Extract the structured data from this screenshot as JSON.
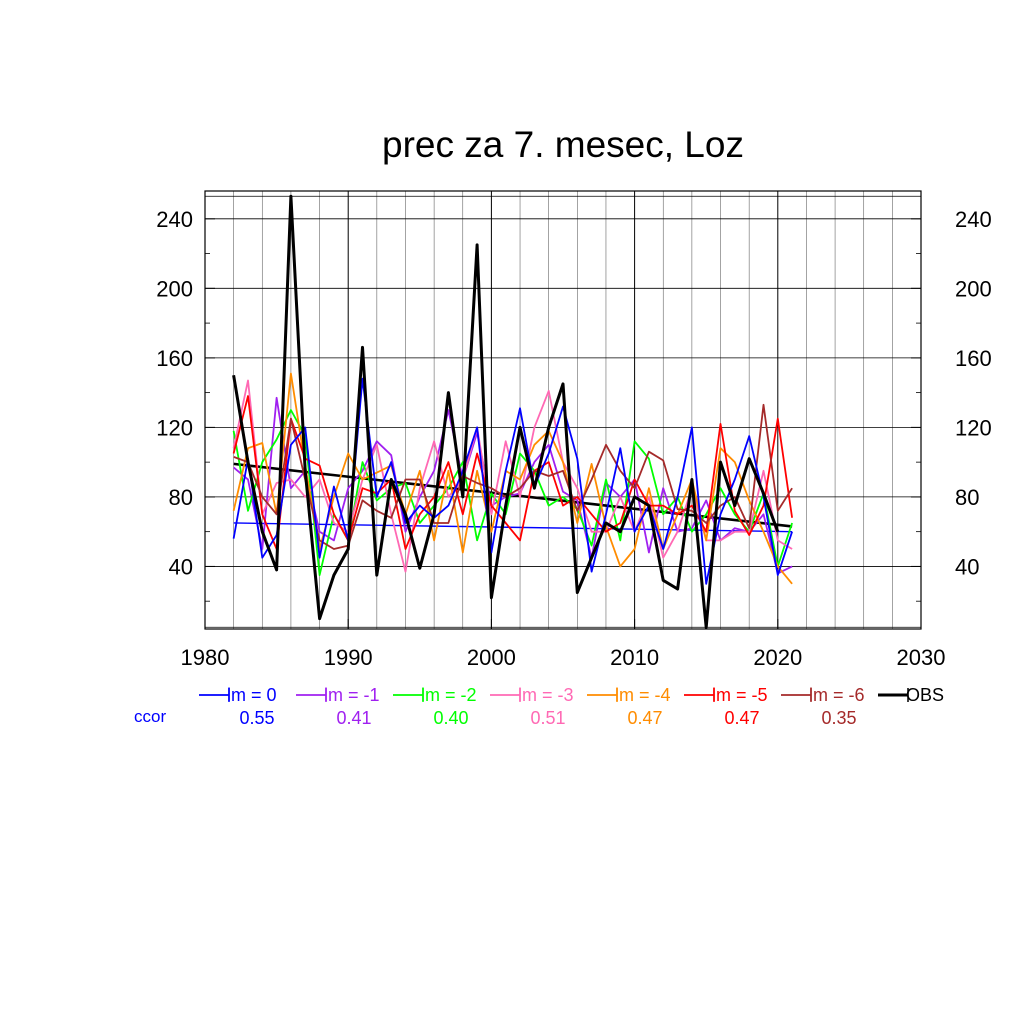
{
  "chart_data": {
    "type": "line",
    "title": "prec za 7. mesec, Loz",
    "xlabel": "",
    "ylabel": "",
    "xlim": [
      1980,
      2030
    ],
    "ylim": [
      4,
      256
    ],
    "x_ticks": [
      1980,
      1990,
      2000,
      2010,
      2020,
      2030
    ],
    "y_ticks": [
      40,
      80,
      120,
      160,
      200,
      240
    ],
    "grid": true,
    "legend_position": "bottom",
    "ccor_label": "ccor",
    "x": [
      1982,
      1983,
      1984,
      1985,
      1986,
      1987,
      1988,
      1989,
      1990,
      1991,
      1992,
      1993,
      1994,
      1995,
      1996,
      1997,
      1998,
      1999,
      2000,
      2001,
      2002,
      2003,
      2004,
      2005,
      2006,
      2007,
      2008,
      2009,
      2010,
      2011,
      2012,
      2013,
      2014,
      2015,
      2016,
      2017,
      2018,
      2019,
      2020,
      2021
    ],
    "series": [
      {
        "name": "lm = 0",
        "color": "#0000ff",
        "width": 1.8,
        "ccor": "0.55",
        "trend": [
          65,
          60
        ],
        "values": [
          56,
          102,
          45,
          58,
          110,
          120,
          45,
          86,
          55,
          148,
          80,
          100,
          65,
          75,
          68,
          75,
          95,
          120,
          48,
          95,
          131,
          86,
          105,
          132,
          102,
          37,
          70,
          108,
          60,
          75,
          50,
          80,
          120,
          30,
          70,
          90,
          115,
          80,
          35,
          60
        ]
      },
      {
        "name": "lm = -1",
        "color": "#a020f0",
        "width": 1.8,
        "ccor": "0.41",
        "values": [
          97,
          90,
          50,
          137,
          85,
          95,
          60,
          55,
          85,
          95,
          112,
          104,
          60,
          80,
          95,
          130,
          90,
          117,
          75,
          80,
          82,
          100,
          110,
          83,
          78,
          45,
          88,
          80,
          90,
          48,
          85,
          60,
          62,
          78,
          55,
          62,
          60,
          70,
          36,
          40
        ]
      },
      {
        "name": "lm = -2",
        "color": "#00ff00",
        "width": 1.8,
        "ccor": "0.40",
        "values": [
          118,
          72,
          100,
          113,
          130,
          115,
          35,
          70,
          55,
          100,
          78,
          85,
          88,
          65,
          75,
          85,
          100,
          55,
          82,
          70,
          105,
          95,
          75,
          80,
          73,
          52,
          90,
          55,
          112,
          102,
          70,
          80,
          60,
          70,
          85,
          70,
          60,
          82,
          40,
          65
        ]
      },
      {
        "name": "lm = -3",
        "color": "#ff69b4",
        "width": 1.8,
        "ccor": "0.51",
        "values": [
          108,
          147,
          70,
          88,
          90,
          80,
          90,
          65,
          60,
          90,
          110,
          70,
          37,
          85,
          112,
          80,
          90,
          120,
          70,
          112,
          80,
          120,
          141,
          100,
          85,
          60,
          60,
          80,
          60,
          80,
          45,
          60,
          85,
          55,
          55,
          60,
          60,
          95,
          55,
          50
        ]
      },
      {
        "name": "lm = -4",
        "color": "#ff8c00",
        "width": 1.8,
        "ccor": "0.47",
        "values": [
          72,
          108,
          111,
          70,
          151,
          98,
          50,
          80,
          105,
          90,
          94,
          98,
          70,
          95,
          55,
          95,
          48,
          95,
          60,
          95,
          90,
          110,
          118,
          100,
          65,
          99,
          63,
          40,
          50,
          85,
          50,
          70,
          90,
          55,
          108,
          100,
          78,
          60,
          40,
          30
        ]
      },
      {
        "name": "lm = -5",
        "color": "#ff0000",
        "width": 1.8,
        "ccor": "0.47",
        "values": [
          105,
          138,
          70,
          50,
          125,
          102,
          98,
          70,
          55,
          85,
          82,
          90,
          50,
          70,
          80,
          100,
          70,
          105,
          75,
          65,
          55,
          95,
          100,
          75,
          80,
          70,
          60,
          65,
          90,
          75,
          75,
          70,
          75,
          60,
          122,
          72,
          58,
          75,
          125,
          68
        ]
      },
      {
        "name": "lm = -6",
        "color": "#a52a2a",
        "width": 1.8,
        "ccor": "0.35",
        "values": [
          103,
          100,
          80,
          70,
          125,
          90,
          55,
          50,
          52,
          78,
          72,
          68,
          90,
          90,
          65,
          65,
          92,
          88,
          85,
          80,
          85,
          95,
          92,
          95,
          72,
          90,
          110,
          95,
          85,
          106,
          101,
          73,
          72,
          65,
          75,
          80,
          62,
          133,
          72,
          85
        ]
      },
      {
        "name": "OBS",
        "color": "#000000",
        "width": 3,
        "ccor": "",
        "trend": [
          99,
          63
        ],
        "values": [
          150,
          100,
          60,
          38,
          253,
          95,
          10,
          35,
          50,
          166,
          35,
          90,
          70,
          39,
          70,
          140,
          80,
          225,
          22,
          75,
          120,
          85,
          120,
          145,
          25,
          45,
          65,
          60,
          80,
          75,
          32,
          27,
          90,
          5,
          100,
          75,
          102,
          82,
          60,
          null
        ]
      }
    ]
  }
}
